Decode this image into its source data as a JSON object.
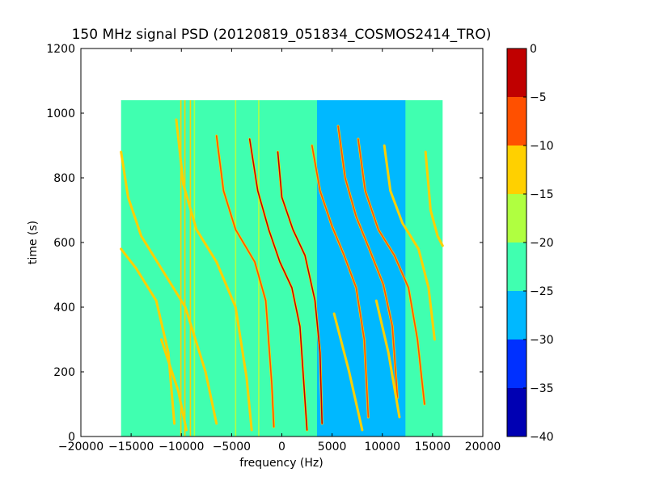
{
  "chart_data": {
    "type": "heatmap",
    "title": "150 MHz signal PSD (20120819_051834_COSMOS2414_TRO)",
    "xlabel": "frequency (Hz)",
    "ylabel": "time (s)",
    "xlim": [
      -20000,
      20000
    ],
    "ylim": [
      0,
      1200
    ],
    "x_ticks": [
      -20000,
      -15000,
      -10000,
      -5000,
      0,
      5000,
      10000,
      15000,
      20000
    ],
    "x_tick_labels": [
      "−20000",
      "−15000",
      "−10000",
      "−5000",
      "0",
      "5000",
      "10000",
      "15000",
      "20000"
    ],
    "y_ticks": [
      0,
      200,
      400,
      600,
      800,
      1000,
      1200
    ],
    "y_tick_labels": [
      "0",
      "200",
      "400",
      "600",
      "800",
      "1000",
      "1200"
    ],
    "data_extent": {
      "x": [
        -16000,
        16000
      ],
      "y": [
        0,
        1040
      ]
    },
    "background_level": -22.5,
    "colorbar": {
      "levels": [
        -40,
        -35,
        -30,
        -25,
        -20,
        -15,
        -10,
        -5,
        0
      ],
      "tick_labels": [
        "−40",
        "−35",
        "−30",
        "−25",
        "−20",
        "−15",
        "−10",
        "−5",
        "0"
      ],
      "colors": [
        "#0000b3",
        "#0030ff",
        "#00b8ff",
        "#40ffb0",
        "#b0ff40",
        "#ffd000",
        "#ff5000",
        "#c00000"
      ]
    },
    "quiet_band": {
      "x": [
        3500,
        12300
      ],
      "level": -27.5
    },
    "steady_lines": [
      {
        "x": -10050,
        "level": -12.5
      },
      {
        "x": -9650,
        "level": -12.5
      },
      {
        "x": -9100,
        "level": -12.5
      },
      {
        "x": -8700,
        "level": -17.5
      },
      {
        "x": -4600,
        "level": -17.5
      },
      {
        "x": -2300,
        "level": -17.5
      }
    ],
    "series": [
      {
        "level": -15,
        "points": [
          [
            -16000,
            580
          ],
          [
            -14500,
            520
          ],
          [
            -12500,
            420
          ],
          [
            -11300,
            260
          ],
          [
            -10700,
            40
          ]
        ]
      },
      {
        "level": -15,
        "points": [
          [
            -16000,
            880
          ],
          [
            -15300,
            740
          ],
          [
            -14000,
            620
          ],
          [
            -12000,
            520
          ],
          [
            -9600,
            400
          ],
          [
            -7600,
            200
          ],
          [
            -6500,
            40
          ]
        ]
      },
      {
        "level": -15,
        "points": [
          [
            -10500,
            980
          ],
          [
            -9800,
            780
          ],
          [
            -8500,
            640
          ],
          [
            -6500,
            540
          ],
          [
            -4600,
            400
          ],
          [
            -3500,
            180
          ],
          [
            -3000,
            20
          ]
        ]
      },
      {
        "level": -10,
        "points": [
          [
            -6500,
            930
          ],
          [
            -5800,
            760
          ],
          [
            -4600,
            640
          ],
          [
            -2700,
            540
          ],
          [
            -1600,
            420
          ],
          [
            -1000,
            160
          ],
          [
            -800,
            30
          ]
        ]
      },
      {
        "level": -5,
        "points": [
          [
            -3200,
            920
          ],
          [
            -2400,
            760
          ],
          [
            -1300,
            640
          ],
          [
            -200,
            540
          ],
          [
            1000,
            460
          ],
          [
            1800,
            340
          ],
          [
            2200,
            160
          ],
          [
            2500,
            20
          ]
        ]
      },
      {
        "level": -5,
        "points": [
          [
            -400,
            880
          ],
          [
            0,
            740
          ],
          [
            1100,
            640
          ],
          [
            2300,
            560
          ],
          [
            3300,
            420
          ],
          [
            3800,
            260
          ],
          [
            4000,
            40
          ]
        ]
      },
      {
        "level": -10,
        "points": [
          [
            3000,
            900
          ],
          [
            3800,
            760
          ],
          [
            5000,
            650
          ],
          [
            6200,
            560
          ],
          [
            7400,
            460
          ],
          [
            8200,
            300
          ],
          [
            8600,
            60
          ]
        ]
      },
      {
        "level": -10,
        "points": [
          [
            5600,
            960
          ],
          [
            6300,
            800
          ],
          [
            7400,
            680
          ],
          [
            8700,
            580
          ],
          [
            10100,
            470
          ],
          [
            11000,
            340
          ],
          [
            11500,
            120
          ]
        ]
      },
      {
        "level": -10,
        "points": [
          [
            7600,
            920
          ],
          [
            8300,
            760
          ],
          [
            9600,
            640
          ],
          [
            11200,
            560
          ],
          [
            12600,
            460
          ],
          [
            13500,
            300
          ],
          [
            14200,
            100
          ]
        ]
      },
      {
        "level": -15,
        "points": [
          [
            10200,
            900
          ],
          [
            10800,
            760
          ],
          [
            12000,
            660
          ],
          [
            13600,
            580
          ],
          [
            14600,
            460
          ],
          [
            15200,
            300
          ]
        ]
      },
      {
        "level": -15,
        "points": [
          [
            14300,
            880
          ],
          [
            14800,
            700
          ],
          [
            15500,
            620
          ],
          [
            16000,
            590
          ]
        ]
      },
      {
        "level": -15,
        "points": [
          [
            -12000,
            300
          ],
          [
            -10300,
            140
          ],
          [
            -9500,
            20
          ]
        ]
      },
      {
        "level": -15,
        "points": [
          [
            5200,
            380
          ],
          [
            6700,
            200
          ],
          [
            8000,
            20
          ]
        ]
      },
      {
        "level": -15,
        "points": [
          [
            9400,
            420
          ],
          [
            10600,
            260
          ],
          [
            11700,
            60
          ]
        ]
      }
    ]
  }
}
